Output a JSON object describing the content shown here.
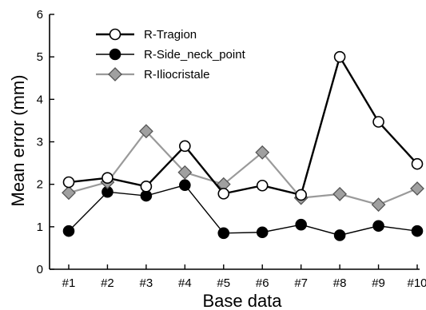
{
  "chart_data": {
    "type": "line",
    "categories": [
      "#1",
      "#2",
      "#3",
      "#4",
      "#5",
      "#6",
      "#7",
      "#8",
      "#9",
      "#10"
    ],
    "xlabel": "Base data",
    "ylabel": "Mean error (mm)",
    "ylim": [
      0,
      6
    ],
    "yticks": [
      "0",
      "1",
      "2",
      "3",
      "4",
      "5",
      "6"
    ],
    "grid": false,
    "legend_position": "top-left",
    "series": [
      {
        "name": "R-Tragion",
        "values": [
          2.05,
          2.15,
          1.95,
          2.9,
          1.78,
          1.97,
          1.75,
          5.0,
          3.47,
          2.48
        ],
        "line_color": "#000000",
        "marker": "circle-open",
        "marker_fill": "#ffffff"
      },
      {
        "name": "R-Side_neck_point",
        "values": [
          0.9,
          1.82,
          1.73,
          1.98,
          0.85,
          0.87,
          1.05,
          0.8,
          1.02,
          0.9
        ],
        "line_color": "#000000",
        "marker": "circle-filled",
        "marker_fill": "#000000"
      },
      {
        "name": "R-Iliocristale",
        "values": [
          1.8,
          2.05,
          3.25,
          2.28,
          2.0,
          2.75,
          1.68,
          1.77,
          1.52,
          1.9
        ],
        "line_color": "#9a9a9a",
        "marker": "diamond",
        "marker_fill": "#a0a0a0"
      }
    ]
  }
}
